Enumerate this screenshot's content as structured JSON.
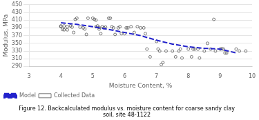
{
  "chart_data": {
    "type": "scatter",
    "title": "Figure 12. Backcalculated modulus vs. moisture content for coarse sandy clay\nsoil, site 48-1122",
    "xlabel": "Moisture Content, %",
    "ylabel": "Modulus, MPa",
    "xlim": [
      3,
      10
    ],
    "ylim": [
      290,
      450
    ],
    "xticks": [
      3,
      4,
      5,
      6,
      7,
      8,
      9,
      10
    ],
    "yticks": [
      290,
      310,
      330,
      350,
      370,
      390,
      410,
      430,
      450
    ],
    "grid": "y",
    "legend": "lower left",
    "series": [
      {
        "name": "Collected Data",
        "type": "scatter",
        "color": "#555555",
        "marker": "circle",
        "x": [
          4.0,
          4.0,
          4.05,
          4.1,
          4.1,
          4.2,
          4.2,
          4.3,
          4.35,
          4.4,
          4.45,
          4.5,
          4.6,
          4.7,
          4.75,
          4.8,
          4.85,
          5.0,
          5.05,
          5.1,
          5.1,
          5.15,
          5.2,
          5.2,
          5.25,
          5.3,
          5.35,
          5.4,
          5.5,
          5.55,
          5.6,
          5.65,
          5.7,
          5.8,
          5.85,
          5.9,
          6.0,
          6.05,
          6.1,
          6.2,
          6.3,
          6.4,
          6.5,
          6.6,
          6.65,
          6.7,
          6.8,
          7.0,
          7.05,
          7.1,
          7.15,
          7.2,
          7.3,
          7.5,
          7.6,
          7.7,
          7.75,
          7.8,
          8.0,
          8.1,
          8.15,
          8.2,
          8.3,
          8.35,
          8.5,
          8.6,
          8.7,
          8.8,
          8.85,
          9.0,
          9.05,
          9.1,
          9.15,
          9.2,
          9.5,
          9.6,
          9.8
        ],
        "values": [
          393,
          395,
          386,
          385,
          395,
          393,
          385,
          395,
          392,
          378,
          412,
          415,
          392,
          390,
          387,
          373,
          415,
          415,
          412,
          410,
          393,
          395,
          391,
          387,
          375,
          393,
          390,
          392,
          415,
          415,
          393,
          390,
          373,
          390,
          393,
          375,
          375,
          390,
          390,
          393,
          378,
          393,
          390,
          390,
          375,
          335,
          315,
          355,
          335,
          330,
          295,
          300,
          330,
          330,
          315,
          330,
          335,
          312,
          335,
          315,
          335,
          335,
          335,
          312,
          330,
          350,
          335,
          412,
          330,
          335,
          336,
          335,
          325,
          325,
          335,
          330,
          330
        ]
      },
      {
        "name": "Model",
        "type": "line",
        "color": "#2222CC",
        "line_style": "dashed",
        "x": [
          4.0,
          4.5,
          5.0,
          5.5,
          6.0,
          6.5,
          7.0,
          7.5,
          8.0,
          8.5,
          9.0,
          9.5
        ],
        "values": [
          403,
          399,
          393,
          386,
          378,
          370,
          358,
          348,
          341,
          337,
          335,
          325
        ]
      }
    ]
  }
}
